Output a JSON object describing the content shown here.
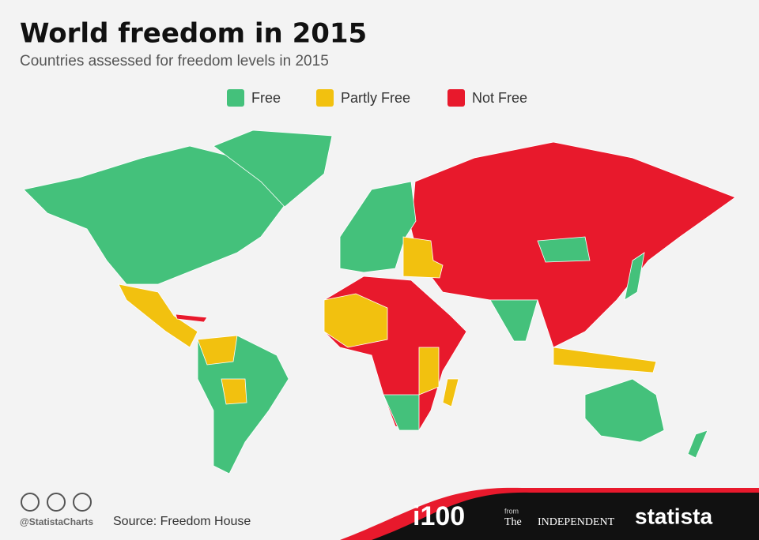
{
  "title": "World freedom in 2015",
  "subtitle": "Countries assessed for freedom levels in 2015",
  "legend": [
    {
      "label": "Free",
      "color": "#44c17b"
    },
    {
      "label": "Partly Free",
      "color": "#f2c10f"
    },
    {
      "label": "Not Free",
      "color": "#e8192c"
    }
  ],
  "footer": {
    "handle": "@StatistaCharts",
    "source": "Source: Freedom House",
    "brand": "i100",
    "from": "from",
    "the": "The",
    "independent": "INDEPENDENT",
    "statista": "statista"
  }
}
